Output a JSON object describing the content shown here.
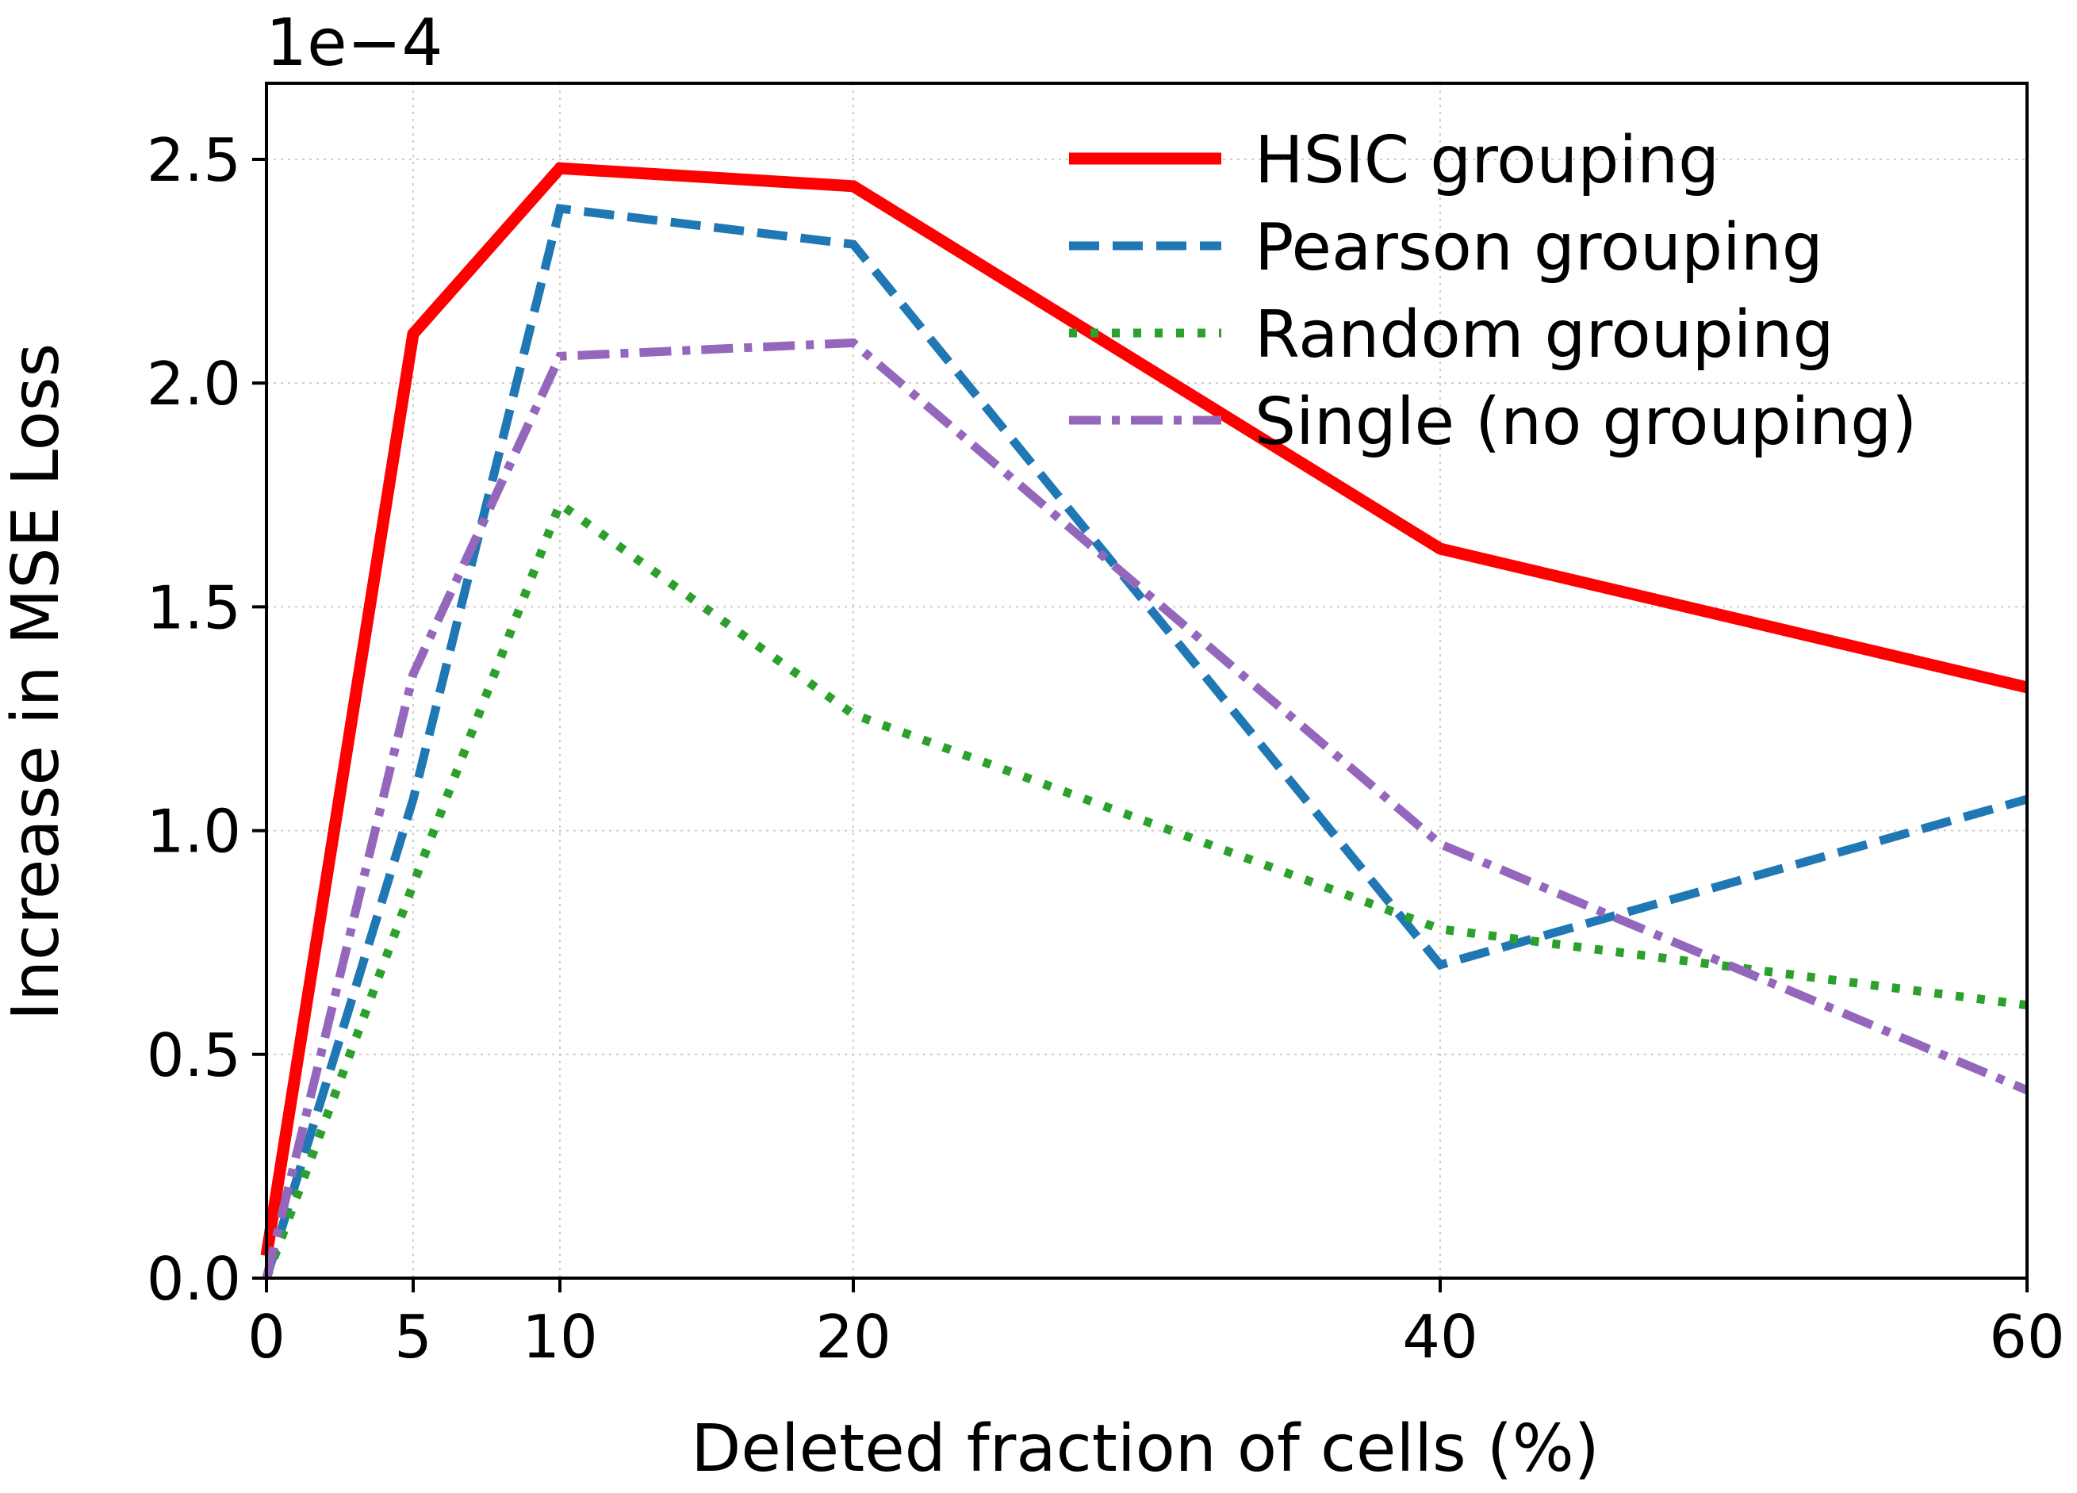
{
  "chart_data": {
    "type": "line",
    "title": "",
    "xlabel": "Deleted fraction of cells (%)",
    "ylabel": "Increase in MSE Loss",
    "y_offset_label": "1e−4",
    "x": [
      0,
      5,
      10,
      20,
      40,
      60
    ],
    "xticks": [
      0,
      5,
      10,
      20,
      40,
      60
    ],
    "xtick_labels": [
      "0",
      "5",
      "10",
      "20",
      "40",
      "60"
    ],
    "yticks": [
      0.0,
      0.5,
      1.0,
      1.5,
      2.0,
      2.5
    ],
    "ytick_labels": [
      "0.0",
      "0.5",
      "1.0",
      "1.5",
      "2.0",
      "2.5"
    ],
    "xlim": [
      0,
      60
    ],
    "ylim": [
      0,
      2.67
    ],
    "grid": true,
    "legend_position": "top-right",
    "series": [
      {
        "name": "HSIC grouping",
        "color": "#ff0000",
        "style": "solid",
        "values": [
          0.05,
          2.11,
          2.48,
          2.44,
          1.63,
          1.32
        ]
      },
      {
        "name": "Pearson grouping",
        "color": "#1f77b4",
        "style": "dashed",
        "values": [
          0.0,
          1.07,
          2.39,
          2.31,
          0.7,
          1.07
        ]
      },
      {
        "name": "Random grouping",
        "color": "#2ca02c",
        "style": "dotted",
        "values": [
          0.0,
          0.88,
          1.73,
          1.26,
          0.78,
          0.61
        ]
      },
      {
        "name": "Single (no grouping)",
        "color": "#9467bd",
        "style": "dashdot",
        "values": [
          0.0,
          1.35,
          2.06,
          2.09,
          0.97,
          0.42
        ]
      }
    ]
  }
}
